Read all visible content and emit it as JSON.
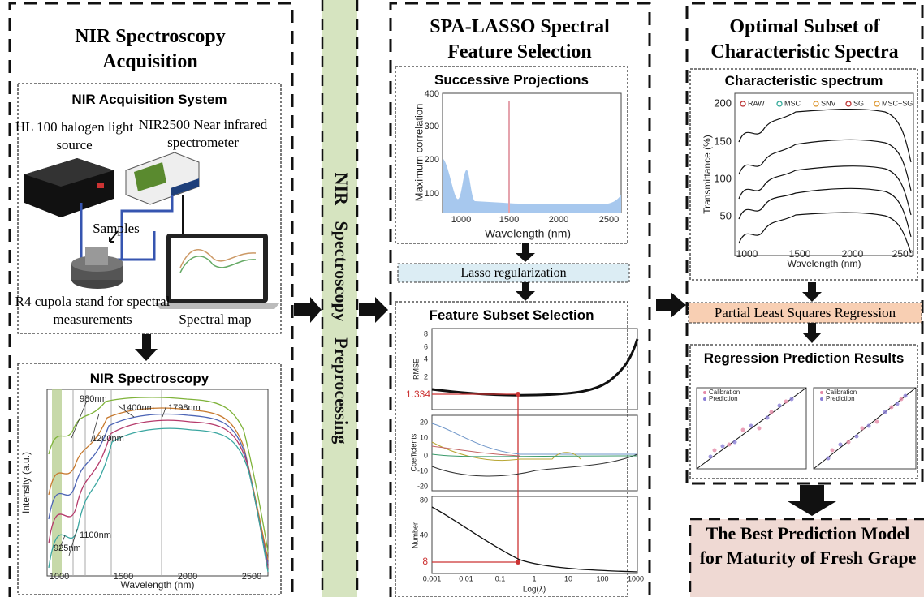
{
  "acquisition": {
    "title": "NIR Spectroscopy Acquisition",
    "system": {
      "title": "NIR Acquisition System",
      "light_source": "HL 100 halogen light source",
      "spectrometer": "NIR2500 Near infrared spectrometer",
      "samples": "Samples",
      "stand": "R4 cupola stand for spectral measurements",
      "spectral_map": "Spectral map"
    },
    "spectroscopy": {
      "title": "NIR Spectroscopy",
      "y_label": "Intensity (a.u.)",
      "x_label": "Wavelength (nm)",
      "xticks": [
        1000,
        1500,
        2000,
        2500
      ],
      "peaks": [
        "980nm",
        "1200nm",
        "1400nm",
        "1798nm",
        "1100nm",
        "925nm"
      ]
    }
  },
  "preprocessing": {
    "title": "NIR Spectroscopy Preprocessing"
  },
  "selection": {
    "title": "SPA-LASSO Spectral Feature Selection",
    "spa": {
      "title": "Successive Projections",
      "y_label": "Maximum correlation",
      "x_label": "Wavelength (nm)",
      "yticks": [
        100,
        200,
        300,
        400
      ],
      "xticks": [
        1000,
        1500,
        2000,
        2500
      ]
    },
    "lasso": "Lasso regularization",
    "subset": {
      "title": "Feature Subset Selection",
      "rmse": {
        "label": "RMSE",
        "yticks": [
          2,
          4,
          6,
          8
        ],
        "marker": "1.334"
      },
      "coefficients": {
        "label": "Coefficients",
        "yticks": [
          -20,
          -10,
          0,
          10,
          20
        ]
      },
      "number": {
        "label": "Number",
        "yticks": [
          40,
          80
        ],
        "marker": "8"
      },
      "x_label": "Log(λ)",
      "xticks": [
        "0.001",
        "0.01",
        "0.1",
        "1",
        "10",
        "100",
        "1000"
      ]
    }
  },
  "optimal": {
    "title": "Optimal Subset of Characteristic Spectra",
    "spectrum": {
      "title": "Characteristic spectrum",
      "legend": [
        "RAW",
        "MSC",
        "SNV",
        "SG",
        "MSC+SG"
      ],
      "y_label": "Transmittance (%)",
      "yticks": [
        50,
        100,
        150,
        200
      ],
      "xticks": [
        1000,
        1500,
        2000,
        2500
      ],
      "x_label": "Wavelength (nm)"
    },
    "pls": "Partial Least Squares Regression",
    "regression": {
      "title": "Regression Prediction Results",
      "legend": [
        "Calibration",
        "Prediction"
      ]
    },
    "result": "The Best Prediction Model for Maturity of Fresh Grape"
  }
}
